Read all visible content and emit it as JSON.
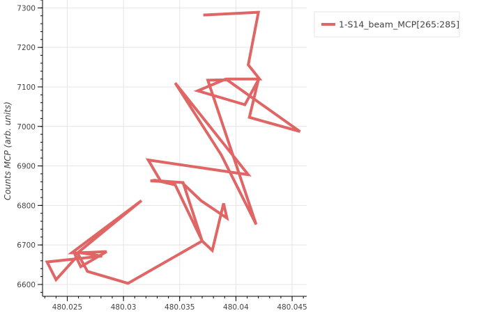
{
  "chart_data": {
    "type": "line",
    "title": "",
    "xlabel": "",
    "ylabel": "Counts MCP (arb. units)",
    "xlim": [
      480.0228,
      480.0463
    ],
    "ylim": [
      6570,
      7320
    ],
    "xticks": [
      480.025,
      480.03,
      480.035,
      480.04,
      480.045
    ],
    "xtick_labels": [
      "480.025",
      "480.03",
      "480.035",
      "480.04",
      "480.045"
    ],
    "yticks": [
      6600,
      6700,
      6800,
      6900,
      7000,
      7100,
      7200,
      7300
    ],
    "ytick_labels": [
      "6600",
      "6700",
      "6800",
      "6900",
      "7000",
      "7100",
      "7200",
      "7300"
    ],
    "grid": true,
    "legend_position": "top-right-outside",
    "series": [
      {
        "name": "1-S14_beam_MCP[265:285]",
        "color": "#e06666",
        "x": [
          480.0371,
          480.042,
          480.0411,
          480.0421,
          480.0391,
          480.0366,
          480.0408,
          480.042,
          480.0412,
          480.0457,
          480.0392,
          480.0375,
          480.0418,
          480.0387,
          480.0346,
          480.0411,
          480.0322,
          480.0333,
          480.0352,
          480.0369,
          480.0392,
          480.0389,
          480.0379,
          480.037,
          480.0346,
          480.0328,
          480.0324,
          480.0353,
          480.037,
          480.0304,
          480.0268,
          480.0259,
          480.0285,
          480.0262,
          480.0257,
          480.0316,
          480.0254,
          480.0262,
          480.0281,
          480.0232,
          480.024,
          480.0259
        ],
        "y": [
          7282,
          7289,
          7156,
          7120,
          7120,
          7090,
          7055,
          7118,
          7023,
          6987,
          7118,
          7117,
          6752,
          6928,
          7110,
          6878,
          6915,
          6862,
          6858,
          6812,
          6768,
          6805,
          6686,
          6710,
          6852,
          6864,
          6862,
          6858,
          6710,
          6603,
          6633,
          6680,
          6683,
          6645,
          6675,
          6812,
          6680,
          6680,
          6672,
          6657,
          6612,
          6672
        ]
      }
    ]
  }
}
